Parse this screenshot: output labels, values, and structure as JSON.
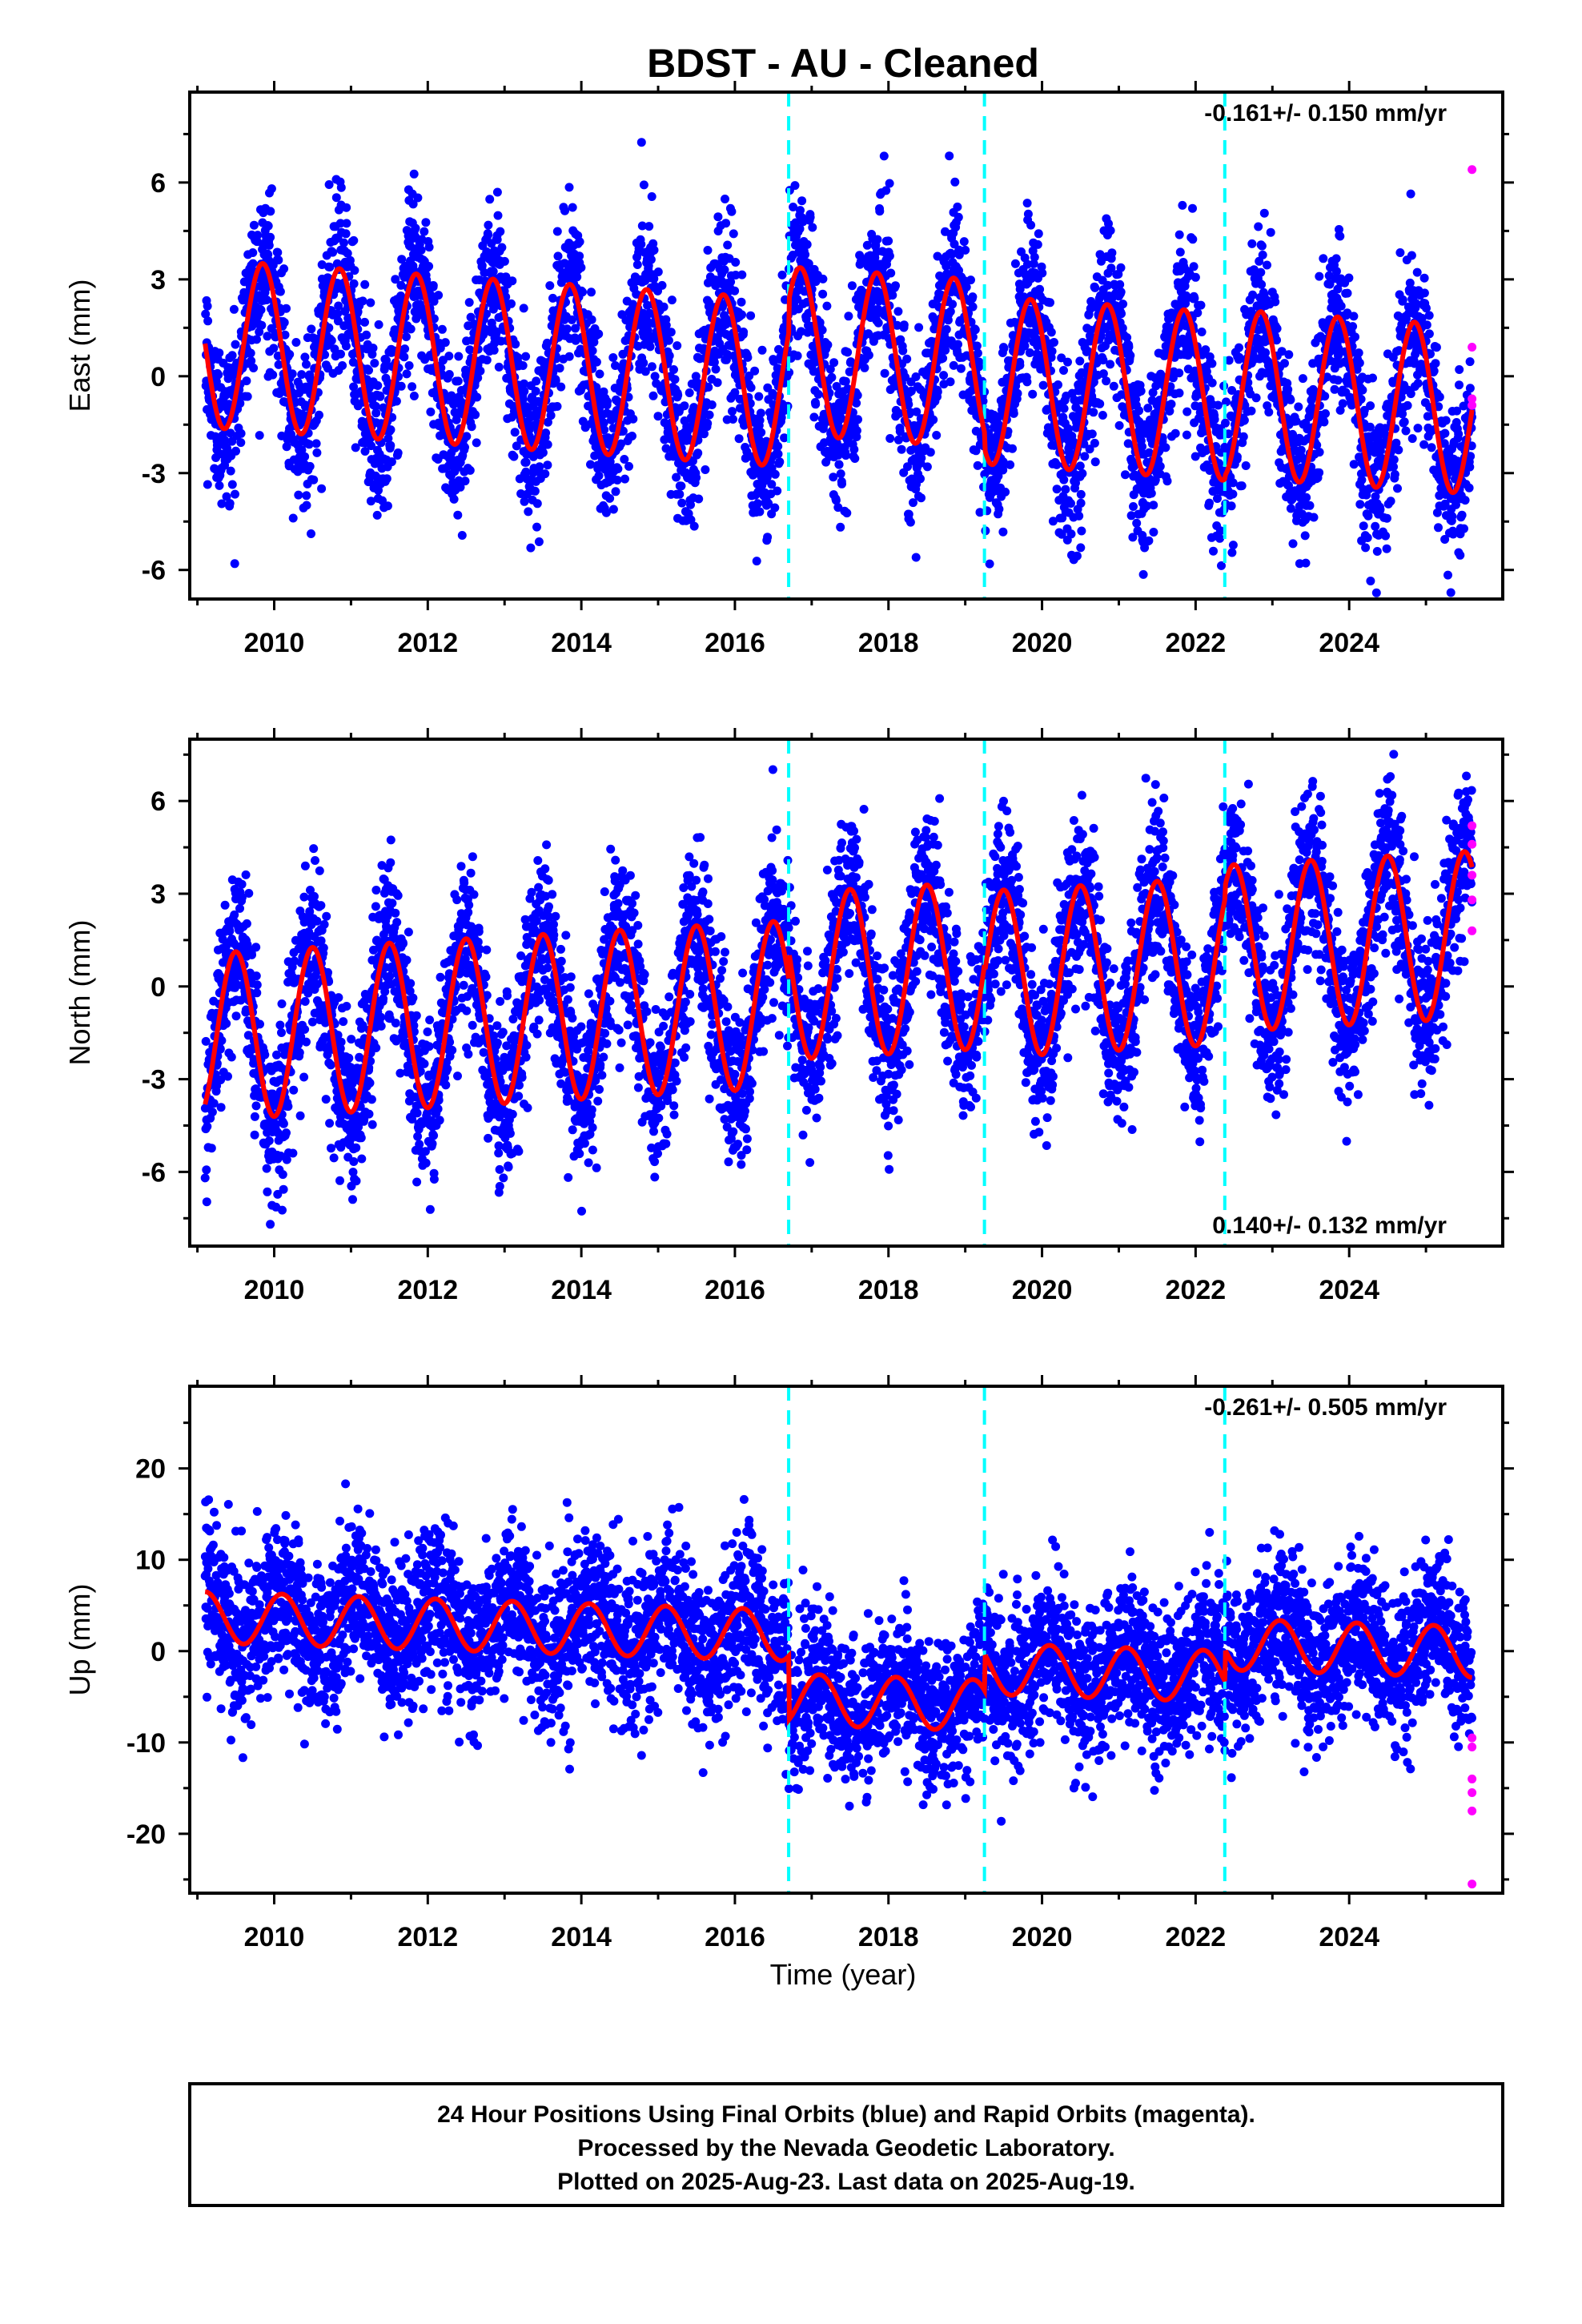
{
  "title": "BDST  - AU - Cleaned",
  "xlabel": "Time (year)",
  "footer": [
    "24 Hour Positions Using Final Orbits (blue) and Rapid Orbits (magenta).",
    "Processed by the Nevada Geodetic Laboratory.",
    "Plotted on 2025-Aug-23. Last data on 2025-Aug-19."
  ],
  "colors": {
    "final": "#0000ff",
    "rapid": "#ff00ff",
    "model": "#ff0000",
    "breaks": "#00ffff"
  },
  "chart_data": [
    {
      "type": "scatter",
      "component": "east",
      "ylabel": "East (mm)",
      "rate_text": "-0.161+/- 0.150 mm/yr",
      "rate_position": "top-right",
      "xlim": [
        2008.9,
        2026.0
      ],
      "ylim": [
        -6.9,
        8.8
      ],
      "xticks": [
        2010,
        2012,
        2014,
        2016,
        2018,
        2020,
        2022,
        2024
      ],
      "yticks": [
        -6,
        -3,
        0,
        3,
        6
      ],
      "breaks": [
        2016.7,
        2019.25,
        2022.38
      ],
      "data_range": [
        2009.1,
        2025.6
      ],
      "model": {
        "annual_amplitude": 2.6,
        "annual_phase_peak": 0.85,
        "trend_mm_per_yr": -0.161,
        "offsets": [
          {
            "at": 2016.7,
            "value": 1.0
          },
          {
            "at": 2019.25,
            "value": -0.5
          },
          {
            "at": 2022.38,
            "value": 0.1
          }
        ]
      },
      "scatter_sigma": 1.25,
      "rapid_points": [
        {
          "x": 2025.6,
          "y": 6.4
        },
        {
          "x": 2025.6,
          "y": 0.9
        },
        {
          "x": 2025.6,
          "y": -0.7
        },
        {
          "x": 2025.6,
          "y": -0.9
        }
      ],
      "grid": false
    },
    {
      "type": "scatter",
      "component": "north",
      "ylabel": "North (mm)",
      "rate_text": "0.140+/- 0.132 mm/yr",
      "rate_position": "bottom-right",
      "xlim": [
        2008.9,
        2026.0
      ],
      "ylim": [
        -8.4,
        8.0
      ],
      "xticks": [
        2010,
        2012,
        2014,
        2016,
        2018,
        2020,
        2022,
        2024
      ],
      "yticks": [
        -6,
        -3,
        0,
        3,
        6
      ],
      "breaks": [
        2016.7,
        2019.25,
        2022.38
      ],
      "data_range": [
        2009.1,
        2025.6
      ],
      "model": {
        "annual_amplitude": 2.7,
        "annual_phase_peak": 0.5,
        "trend_mm_per_yr": 0.14,
        "offsets": [
          {
            "at": 2016.7,
            "value": 0.9
          },
          {
            "at": 2019.25,
            "value": -0.3
          },
          {
            "at": 2022.38,
            "value": 0.4
          }
        ]
      },
      "scatter_sigma": 1.3,
      "rapid_points": [
        {
          "x": 2025.6,
          "y": 5.2
        },
        {
          "x": 2025.6,
          "y": 4.6
        },
        {
          "x": 2025.6,
          "y": 3.6
        },
        {
          "x": 2025.6,
          "y": 2.8
        },
        {
          "x": 2025.6,
          "y": 1.8
        }
      ],
      "grid": false
    },
    {
      "type": "scatter",
      "component": "up",
      "ylabel": "Up (mm)",
      "rate_text": "-0.261+/- 0.505 mm/yr",
      "rate_position": "top-right",
      "xlim": [
        2008.9,
        2026.0
      ],
      "ylim": [
        -26.5,
        29.0
      ],
      "xticks": [
        2010,
        2012,
        2014,
        2016,
        2018,
        2020,
        2022,
        2024
      ],
      "yticks": [
        -20,
        -10,
        0,
        10,
        20
      ],
      "breaks": [
        2016.7,
        2019.25,
        2022.38
      ],
      "data_range": [
        2009.1,
        2025.6
      ],
      "model": {
        "annual_amplitude": 2.8,
        "annual_phase_peak": 0.1,
        "trend_mm_per_yr": -0.261,
        "offsets": [
          {
            "at": 2016.7,
            "value": -7.0
          },
          {
            "at": 2019.25,
            "value": 4.0
          },
          {
            "at": 2022.38,
            "value": 3.5
          }
        ]
      },
      "scatter_sigma": 4.2,
      "rapid_points": [
        {
          "x": 2025.6,
          "y": -9.5
        },
        {
          "x": 2025.6,
          "y": -10.5
        },
        {
          "x": 2025.6,
          "y": -14.0
        },
        {
          "x": 2025.6,
          "y": -15.5
        },
        {
          "x": 2025.6,
          "y": -17.5
        },
        {
          "x": 2025.6,
          "y": -25.5
        }
      ],
      "grid": false
    }
  ]
}
